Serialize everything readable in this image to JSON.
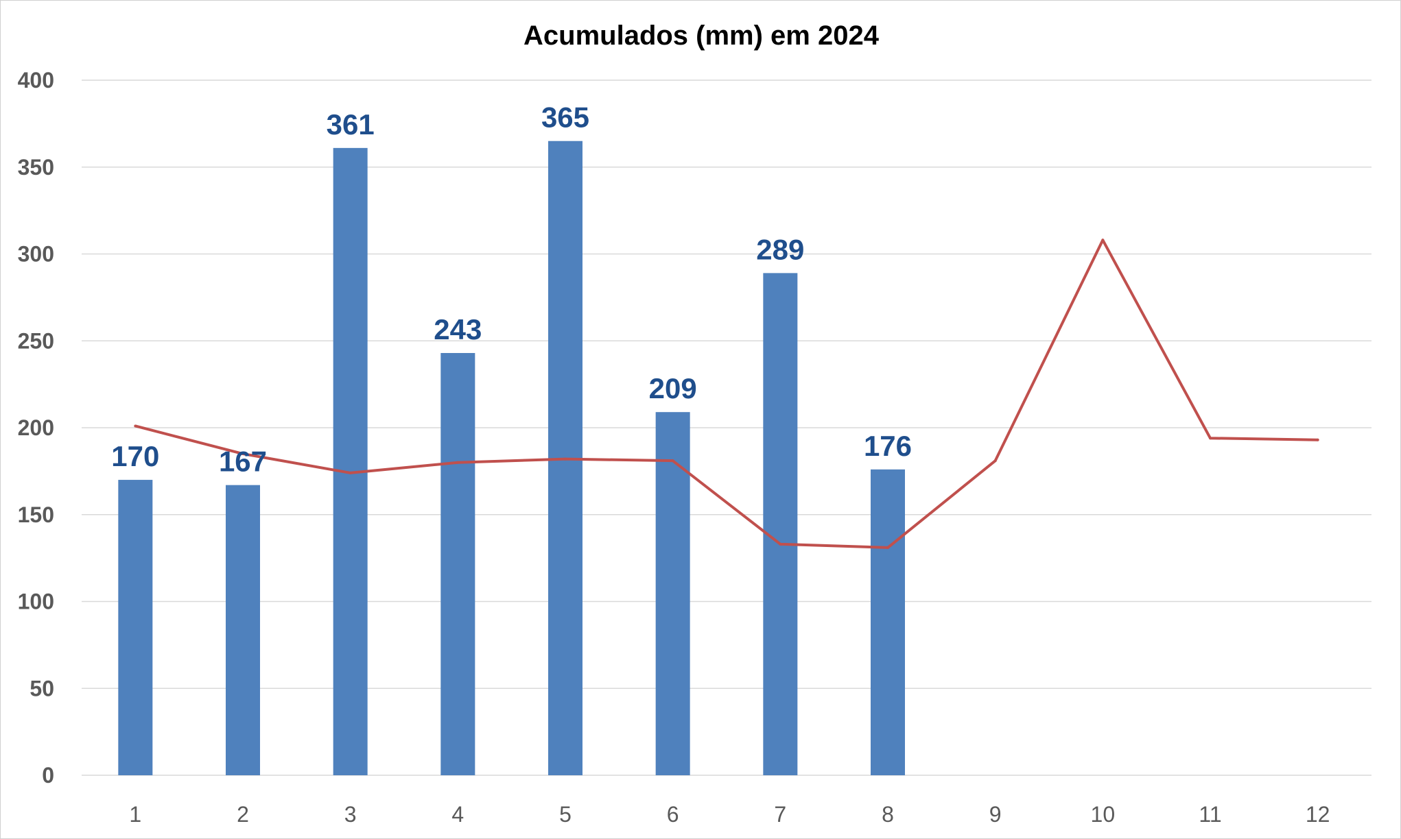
{
  "chart_data": {
    "type": "bar",
    "title": "Acumulados (mm) em 2024",
    "xlabel": "",
    "ylabel": "",
    "categories": [
      "1",
      "2",
      "3",
      "4",
      "5",
      "6",
      "7",
      "8",
      "9",
      "10",
      "11",
      "12"
    ],
    "ylim": [
      0,
      400
    ],
    "yticks": [
      "0",
      "50",
      "100",
      "150",
      "200",
      "250",
      "300",
      "350",
      "400"
    ],
    "grid": true,
    "legend": "none",
    "series": [
      {
        "type": "bar",
        "color": "#4f81bd",
        "label_color": "#1f4e8c",
        "values": [
          170,
          167,
          361,
          243,
          365,
          209,
          289,
          176,
          null,
          null,
          null,
          null
        ],
        "data_labels": [
          "170",
          "167",
          "361",
          "243",
          "365",
          "209",
          "289",
          "176",
          "",
          "",
          "",
          ""
        ]
      },
      {
        "type": "line",
        "color": "#c0504d",
        "values": [
          201,
          185,
          174,
          180,
          182,
          181,
          133,
          131,
          181,
          308,
          194,
          193
        ]
      }
    ]
  }
}
